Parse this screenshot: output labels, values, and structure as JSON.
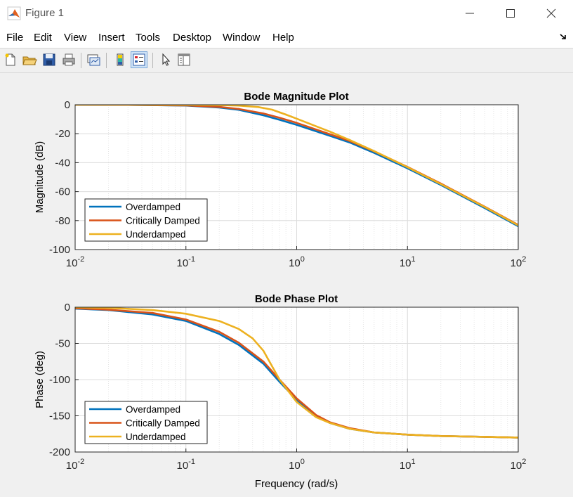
{
  "window": {
    "title": "Figure 1"
  },
  "menu": {
    "items": [
      "File",
      "Edit",
      "View",
      "Insert",
      "Tools",
      "Desktop",
      "Window",
      "Help"
    ]
  },
  "toolbar": {
    "buttons": [
      {
        "icon": "new-figure-icon"
      },
      {
        "icon": "open-file-icon"
      },
      {
        "icon": "save-icon"
      },
      {
        "icon": "print-icon"
      },
      {
        "icon": "link-plot-icon"
      },
      {
        "icon": "colorbar-icon"
      },
      {
        "icon": "legend-icon"
      },
      {
        "icon": "select-pointer-icon"
      },
      {
        "icon": "property-inspector-icon"
      }
    ]
  },
  "colors": {
    "overdamped": "#0072bd",
    "critically_damped": "#d95319",
    "underdamped": "#edb120"
  },
  "chart_data": [
    {
      "type": "line",
      "title": "Bode Magnitude Plot",
      "xlabel": "",
      "ylabel": "Magnitude (dB)",
      "xscale": "log",
      "xlim": [
        0.01,
        100
      ],
      "ylim": [
        -100,
        0
      ],
      "yticks": [
        "0",
        "-20",
        "-40",
        "-60",
        "-80",
        "-100"
      ],
      "xticks": [
        {
          "base": "10",
          "exp": "-2"
        },
        {
          "base": "10",
          "exp": "-1"
        },
        {
          "base": "10",
          "exp": "0"
        },
        {
          "base": "10",
          "exp": "1"
        },
        {
          "base": "10",
          "exp": "2"
        }
      ],
      "grid": true,
      "legend_position": "bottom-left",
      "series": [
        {
          "name": "Overdamped",
          "x": [
            0.01,
            0.03,
            0.1,
            0.2,
            0.3,
            0.5,
            0.7,
            1,
            2,
            3,
            5,
            10,
            20,
            50,
            100
          ],
          "y": [
            0,
            -0.1,
            -0.6,
            -1.9,
            -3.5,
            -7.3,
            -10.4,
            -13.9,
            -21.5,
            -26,
            -33.2,
            -43.9,
            -55.4,
            -71.4,
            -83.9
          ]
        },
        {
          "name": "Critically Damped",
          "x": [
            0.01,
            0.03,
            0.1,
            0.2,
            0.3,
            0.5,
            0.7,
            1,
            2,
            3,
            5,
            10,
            20,
            50,
            100
          ],
          "y": [
            0,
            -0.1,
            -0.5,
            -1.5,
            -2.9,
            -6,
            -9,
            -12.5,
            -20.4,
            -25,
            -32.2,
            -42.9,
            -54.4,
            -70.5,
            -83
          ]
        },
        {
          "name": "Underdamped",
          "x": [
            0.01,
            0.03,
            0.1,
            0.2,
            0.3,
            0.45,
            0.6,
            0.8,
            1,
            1.5,
            2,
            3,
            5,
            10,
            20,
            50,
            100
          ],
          "y": [
            0,
            0,
            -0.1,
            -0.3,
            -0.6,
            -1.6,
            -3.4,
            -6.8,
            -9.6,
            -14.9,
            -18.6,
            -24.3,
            -32,
            -43.1,
            -54.8,
            -70.7,
            -83.3
          ]
        }
      ]
    },
    {
      "type": "line",
      "title": "Bode Phase Plot",
      "xlabel": "Frequency (rad/s)",
      "ylabel": "Phase (deg)",
      "xscale": "log",
      "xlim": [
        0.01,
        100
      ],
      "ylim": [
        -200,
        0
      ],
      "yticks": [
        "0",
        "-50",
        "-100",
        "-150",
        "-200"
      ],
      "xticks": [
        {
          "base": "10",
          "exp": "-2"
        },
        {
          "base": "10",
          "exp": "-1"
        },
        {
          "base": "10",
          "exp": "0"
        },
        {
          "base": "10",
          "exp": "1"
        },
        {
          "base": "10",
          "exp": "2"
        }
      ],
      "grid": true,
      "legend_position": "bottom-left",
      "series": [
        {
          "name": "Overdamped",
          "x": [
            0.01,
            0.02,
            0.05,
            0.1,
            0.2,
            0.3,
            0.5,
            0.7,
            1,
            1.5,
            2,
            3,
            5,
            10,
            20,
            50,
            100
          ],
          "y": [
            -2,
            -4,
            -10,
            -19,
            -37,
            -52,
            -78,
            -103,
            -128,
            -150,
            -160,
            -168,
            -173,
            -176,
            -178,
            -179,
            -180
          ]
        },
        {
          "name": "Critically Damped",
          "x": [
            0.01,
            0.02,
            0.05,
            0.1,
            0.2,
            0.3,
            0.5,
            0.7,
            1,
            1.5,
            2,
            3,
            5,
            10,
            20,
            50,
            100
          ],
          "y": [
            -1.5,
            -3.5,
            -8,
            -17,
            -34,
            -49,
            -75,
            -100,
            -126,
            -149,
            -159,
            -167,
            -173,
            -176,
            -178,
            -179,
            -180
          ]
        },
        {
          "name": "Underdamped",
          "x": [
            0.01,
            0.02,
            0.05,
            0.1,
            0.2,
            0.3,
            0.4,
            0.5,
            0.7,
            1,
            1.5,
            2,
            3,
            5,
            10,
            20,
            50,
            100
          ],
          "y": [
            0,
            -1,
            -4,
            -9,
            -19,
            -30,
            -43,
            -60,
            -100,
            -131,
            -152,
            -160,
            -168,
            -173,
            -176,
            -178,
            -179,
            -180
          ]
        }
      ]
    }
  ]
}
